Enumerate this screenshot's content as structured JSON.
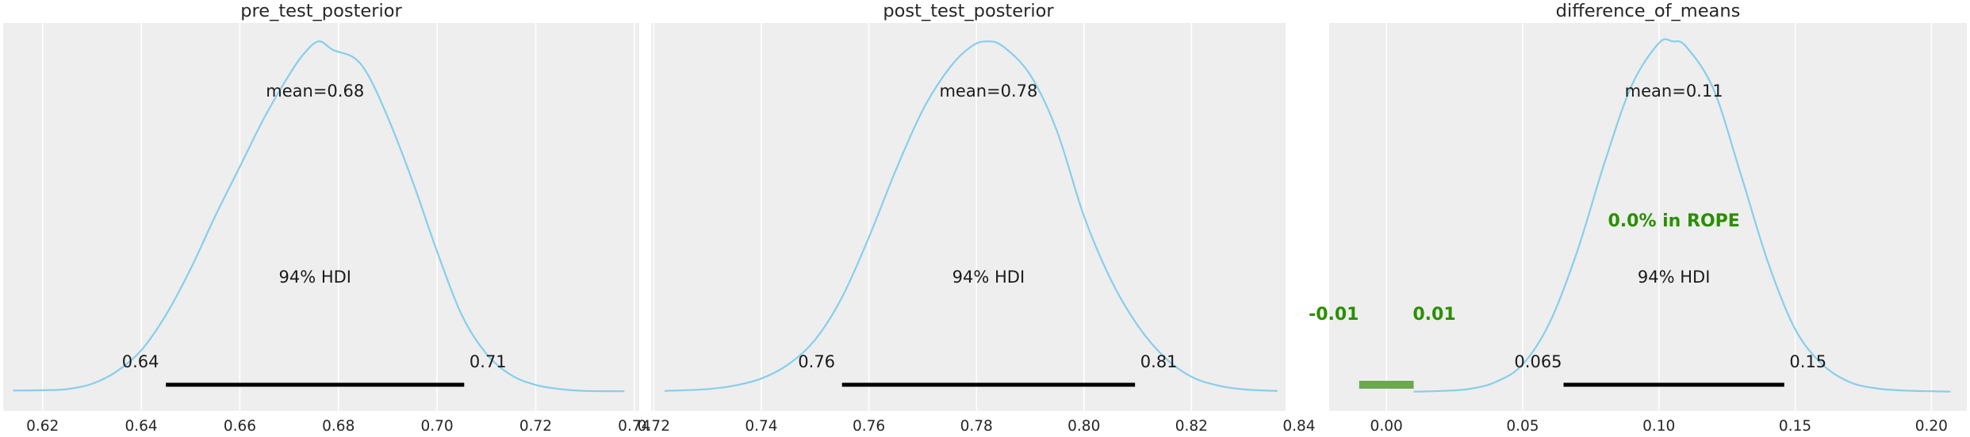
{
  "colors": {
    "kde": "#87ceeb",
    "hdi": "#000000",
    "rope": "#6ba84f",
    "rope_text": "#2a8f00",
    "panel": "#eeeeee"
  },
  "chart_data": [
    {
      "type": "area",
      "title": "pre_test_posterior",
      "xlim": [
        0.612,
        0.741
      ],
      "xticks": [
        "0.62",
        "0.64",
        "0.66",
        "0.68",
        "0.70",
        "0.72",
        "0.74"
      ],
      "mean_label": "mean=0.68",
      "hdi_label": "94% HDI",
      "hdi": [
        0.645,
        0.7055
      ],
      "hdi_low_label": "0.64",
      "hdi_high_label": "0.71",
      "density": {
        "x": [
          0.614,
          0.62,
          0.625,
          0.63,
          0.635,
          0.64,
          0.645,
          0.65,
          0.655,
          0.66,
          0.665,
          0.67,
          0.673,
          0.676,
          0.679,
          0.683,
          0.686,
          0.69,
          0.695,
          0.7,
          0.705,
          0.71,
          0.715,
          0.72,
          0.725,
          0.73,
          0.738
        ],
        "y": [
          0.006,
          0.007,
          0.01,
          0.025,
          0.06,
          0.12,
          0.22,
          0.35,
          0.5,
          0.64,
          0.78,
          0.9,
          0.96,
          0.995,
          0.97,
          0.95,
          0.9,
          0.78,
          0.6,
          0.4,
          0.22,
          0.11,
          0.05,
          0.022,
          0.01,
          0.005,
          0.004
        ]
      }
    },
    {
      "type": "area",
      "title": "post_test_posterior",
      "xlim": [
        0.7195,
        0.8375
      ],
      "xticks": [
        "0.72",
        "0.74",
        "0.76",
        "0.78",
        "0.80",
        "0.82",
        "0.84"
      ],
      "mean_label": "mean=0.78",
      "hdi_label": "94% HDI",
      "hdi": [
        0.755,
        0.8095
      ],
      "hdi_low_label": "0.76",
      "hdi_high_label": "0.81",
      "density": {
        "x": [
          0.722,
          0.73,
          0.735,
          0.74,
          0.745,
          0.75,
          0.755,
          0.76,
          0.765,
          0.77,
          0.775,
          0.779,
          0.782,
          0.785,
          0.79,
          0.795,
          0.8,
          0.805,
          0.81,
          0.815,
          0.82,
          0.825,
          0.83,
          0.836
        ],
        "y": [
          0.005,
          0.01,
          0.02,
          0.04,
          0.08,
          0.15,
          0.27,
          0.44,
          0.63,
          0.8,
          0.92,
          0.98,
          0.995,
          0.98,
          0.9,
          0.74,
          0.5,
          0.32,
          0.19,
          0.1,
          0.045,
          0.02,
          0.009,
          0.005
        ]
      }
    },
    {
      "type": "area",
      "title": "difference_of_means",
      "xlim": [
        -0.021,
        0.213
      ],
      "xticks": [
        "0.00",
        "0.05",
        "0.10",
        "0.15",
        "0.20"
      ],
      "mean_label": "mean=0.11",
      "hdi_label": "94% HDI",
      "hdi": [
        0.065,
        0.146
      ],
      "hdi_low_label": "0.065",
      "hdi_high_label": "0.15",
      "rope": [
        -0.01,
        0.01
      ],
      "rope_low_label": "-0.01",
      "rope_high_label": "0.01",
      "rope_text": "0.0% in ROPE",
      "density": {
        "x": [
          0.01,
          0.02,
          0.03,
          0.04,
          0.05,
          0.06,
          0.07,
          0.08,
          0.09,
          0.1,
          0.105,
          0.11,
          0.12,
          0.13,
          0.14,
          0.15,
          0.16,
          0.17,
          0.18,
          0.19,
          0.2,
          0.207
        ],
        "y": [
          0.003,
          0.005,
          0.01,
          0.03,
          0.08,
          0.2,
          0.4,
          0.65,
          0.87,
          0.99,
          0.995,
          0.98,
          0.86,
          0.62,
          0.37,
          0.18,
          0.08,
          0.03,
          0.012,
          0.006,
          0.004,
          0.003
        ]
      }
    }
  ]
}
